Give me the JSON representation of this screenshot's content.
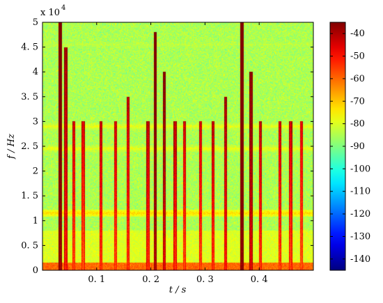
{
  "chart_data": {
    "type": "heatmap",
    "title": "",
    "xlabel": "t / s",
    "ylabel": "f / Hz",
    "y_exponent_label": "x 10",
    "y_exponent_power": "4",
    "xlim": [
      0,
      0.5
    ],
    "ylim": [
      0,
      5
    ],
    "x_ticks": [
      0.1,
      0.2,
      0.3,
      0.4
    ],
    "x_tick_labels": [
      "0. 1",
      "0. 2",
      "0. 3",
      "0. 4"
    ],
    "y_ticks": [
      0,
      0.5,
      1,
      1.5,
      2,
      2.5,
      3,
      3.5,
      4,
      4.5,
      5
    ],
    "y_tick_labels": [
      "0",
      "0. 5",
      "1",
      "1. 5",
      "2",
      "2. 5",
      "3",
      "3. 5",
      "4",
      "4. 5",
      "5"
    ],
    "colorbar": {
      "range": [
        -145,
        -35
      ],
      "ticks": [
        -40,
        -50,
        -60,
        -70,
        -80,
        -90,
        -100,
        -110,
        -120,
        -130,
        -140
      ],
      "tick_labels": [
        "-40",
        "-50",
        "-60",
        "-70",
        "-80",
        "-90",
        "-100",
        "-110",
        "-120",
        "-130",
        "-140"
      ],
      "colormap": "jet"
    },
    "background_level_db": -85,
    "low_frequency_band": {
      "f_range": [
        0,
        0.15
      ],
      "level_db": -60
    },
    "horizontal_bands": [
      {
        "f": 1.15,
        "level_db": -72
      },
      {
        "f": 2.45,
        "level_db": -78
      },
      {
        "f": 2.9,
        "level_db": -78
      },
      {
        "f": 4.55,
        "level_db": -84
      }
    ],
    "vertical_streaks": [
      {
        "t": 0.033,
        "level_db": -42,
        "f_max": 5
      },
      {
        "t": 0.043,
        "level_db": -55,
        "f_max": 4.5
      },
      {
        "t": 0.058,
        "level_db": -60,
        "f_max": 3
      },
      {
        "t": 0.075,
        "level_db": -62,
        "f_max": 3
      },
      {
        "t": 0.108,
        "level_db": -58,
        "f_max": 3
      },
      {
        "t": 0.135,
        "level_db": -60,
        "f_max": 3
      },
      {
        "t": 0.158,
        "level_db": -58,
        "f_max": 3.5
      },
      {
        "t": 0.195,
        "level_db": -58,
        "f_max": 3
      },
      {
        "t": 0.208,
        "level_db": -45,
        "f_max": 4.8
      },
      {
        "t": 0.225,
        "level_db": -50,
        "f_max": 4
      },
      {
        "t": 0.245,
        "level_db": -58,
        "f_max": 3
      },
      {
        "t": 0.262,
        "level_db": -60,
        "f_max": 3
      },
      {
        "t": 0.292,
        "level_db": -60,
        "f_max": 3
      },
      {
        "t": 0.315,
        "level_db": -58,
        "f_max": 3
      },
      {
        "t": 0.338,
        "level_db": -55,
        "f_max": 3.5
      },
      {
        "t": 0.368,
        "level_db": -40,
        "f_max": 5
      },
      {
        "t": 0.385,
        "level_db": -50,
        "f_max": 4
      },
      {
        "t": 0.402,
        "level_db": -58,
        "f_max": 3
      },
      {
        "t": 0.438,
        "level_db": -60,
        "f_max": 3
      },
      {
        "t": 0.458,
        "level_db": -60,
        "f_max": 3
      },
      {
        "t": 0.478,
        "level_db": -62,
        "f_max": 3
      }
    ]
  }
}
